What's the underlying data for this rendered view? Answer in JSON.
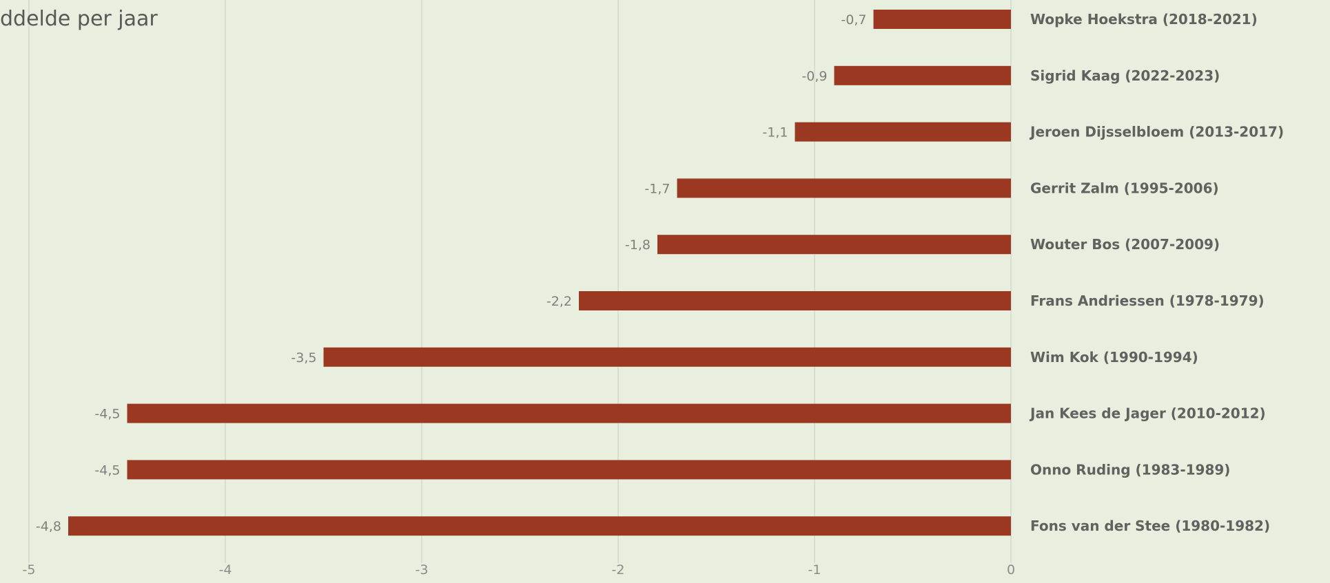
{
  "chart_data": {
    "type": "bar",
    "orientation": "horizontal",
    "title": "ddelde per jaar",
    "categories": [
      "Wopke Hoekstra (2018-2021)",
      "Sigrid Kaag (2022-2023)",
      "Jeroen Dijsselbloem (2013-2017)",
      "Gerrit Zalm (1995-2006)",
      "Wouter Bos (2007-2009)",
      "Frans Andriessen (1978-1979)",
      "Wim Kok (1990-1994)",
      "Jan Kees de Jager (2010-2012)",
      "Onno Ruding (1983-1989)",
      "Fons van der Stee (1980-1982)"
    ],
    "values": [
      -0.7,
      -0.9,
      -1.1,
      -1.7,
      -1.8,
      -2.2,
      -3.5,
      -4.5,
      -4.5,
      -4.8
    ],
    "value_labels": [
      "-0,7",
      "-0,9",
      "-1,1",
      "-1,7",
      "-1,8",
      "-2,2",
      "-3,5",
      "-4,5",
      "-4,5",
      "-4,8"
    ],
    "xlim": [
      -5,
      0
    ],
    "xticks": [
      -5,
      -4,
      -3,
      -2,
      -1,
      0
    ],
    "xtick_labels": [
      "-5",
      "-4",
      "-3",
      "-2",
      "-1",
      "0"
    ],
    "grid": true,
    "legend": "none",
    "colors": {
      "bar": "#9a3822",
      "background": "#e9efdf",
      "grid": "#d9ded2"
    }
  }
}
